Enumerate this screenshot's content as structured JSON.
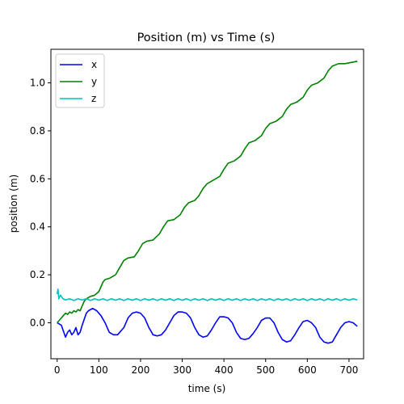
{
  "chart_data": {
    "type": "line",
    "title": "Position (m) vs Time (s)",
    "xlabel": "time (s)",
    "ylabel": "position (m)",
    "xlim": [
      -15,
      735
    ],
    "ylim": [
      -0.15,
      1.14
    ],
    "xticks": [
      0,
      100,
      200,
      300,
      400,
      500,
      600,
      700
    ],
    "yticks": [
      0.0,
      0.2,
      0.4,
      0.6,
      0.8,
      1.0
    ],
    "grid": false,
    "legend_position": "top-left",
    "series": [
      {
        "name": "x",
        "color": "#0000ff",
        "points": [
          [
            0,
            0.0
          ],
          [
            10,
            -0.01
          ],
          [
            20,
            -0.06
          ],
          [
            25,
            -0.04
          ],
          [
            30,
            -0.03
          ],
          [
            35,
            -0.05
          ],
          [
            40,
            -0.04
          ],
          [
            45,
            -0.02
          ],
          [
            50,
            -0.05
          ],
          [
            55,
            -0.04
          ],
          [
            60,
            -0.01
          ],
          [
            70,
            0.04
          ],
          [
            75,
            0.05
          ],
          [
            85,
            0.06
          ],
          [
            95,
            0.05
          ],
          [
            105,
            0.03
          ],
          [
            115,
            0.0
          ],
          [
            125,
            -0.04
          ],
          [
            135,
            -0.05
          ],
          [
            145,
            -0.05
          ],
          [
            160,
            -0.02
          ],
          [
            170,
            0.02
          ],
          [
            180,
            0.04
          ],
          [
            190,
            0.045
          ],
          [
            200,
            0.04
          ],
          [
            210,
            0.02
          ],
          [
            220,
            -0.02
          ],
          [
            230,
            -0.05
          ],
          [
            240,
            -0.055
          ],
          [
            250,
            -0.05
          ],
          [
            260,
            -0.03
          ],
          [
            270,
            0.0
          ],
          [
            280,
            0.03
          ],
          [
            290,
            0.045
          ],
          [
            300,
            0.045
          ],
          [
            310,
            0.04
          ],
          [
            320,
            0.02
          ],
          [
            330,
            -0.02
          ],
          [
            340,
            -0.05
          ],
          [
            350,
            -0.06
          ],
          [
            360,
            -0.055
          ],
          [
            370,
            -0.03
          ],
          [
            380,
            0.0
          ],
          [
            390,
            0.025
          ],
          [
            400,
            0.025
          ],
          [
            410,
            0.02
          ],
          [
            420,
            0.0
          ],
          [
            430,
            -0.04
          ],
          [
            440,
            -0.065
          ],
          [
            450,
            -0.07
          ],
          [
            460,
            -0.065
          ],
          [
            470,
            -0.045
          ],
          [
            480,
            -0.02
          ],
          [
            490,
            0.01
          ],
          [
            500,
            0.02
          ],
          [
            510,
            0.02
          ],
          [
            520,
            0.0
          ],
          [
            530,
            -0.04
          ],
          [
            540,
            -0.07
          ],
          [
            550,
            -0.08
          ],
          [
            560,
            -0.075
          ],
          [
            570,
            -0.05
          ],
          [
            580,
            -0.02
          ],
          [
            590,
            0.005
          ],
          [
            600,
            0.01
          ],
          [
            610,
            0.0
          ],
          [
            620,
            -0.02
          ],
          [
            630,
            -0.06
          ],
          [
            640,
            -0.08
          ],
          [
            650,
            -0.085
          ],
          [
            660,
            -0.08
          ],
          [
            670,
            -0.05
          ],
          [
            680,
            -0.02
          ],
          [
            690,
            0.0
          ],
          [
            700,
            0.005
          ],
          [
            710,
            0.0
          ],
          [
            720,
            -0.015
          ]
        ]
      },
      {
        "name": "y",
        "color": "#008000",
        "points": [
          [
            0,
            0.0
          ],
          [
            10,
            0.02
          ],
          [
            15,
            0.03
          ],
          [
            20,
            0.04
          ],
          [
            25,
            0.035
          ],
          [
            30,
            0.045
          ],
          [
            35,
            0.04
          ],
          [
            40,
            0.05
          ],
          [
            45,
            0.045
          ],
          [
            50,
            0.055
          ],
          [
            55,
            0.05
          ],
          [
            60,
            0.07
          ],
          [
            65,
            0.09
          ],
          [
            70,
            0.1
          ],
          [
            80,
            0.11
          ],
          [
            90,
            0.115
          ],
          [
            100,
            0.13
          ],
          [
            110,
            0.17
          ],
          [
            115,
            0.18
          ],
          [
            125,
            0.185
          ],
          [
            140,
            0.2
          ],
          [
            150,
            0.23
          ],
          [
            160,
            0.26
          ],
          [
            170,
            0.27
          ],
          [
            185,
            0.275
          ],
          [
            195,
            0.3
          ],
          [
            205,
            0.33
          ],
          [
            215,
            0.34
          ],
          [
            230,
            0.345
          ],
          [
            245,
            0.37
          ],
          [
            255,
            0.4
          ],
          [
            265,
            0.425
          ],
          [
            280,
            0.43
          ],
          [
            295,
            0.45
          ],
          [
            305,
            0.48
          ],
          [
            315,
            0.5
          ],
          [
            330,
            0.51
          ],
          [
            340,
            0.53
          ],
          [
            350,
            0.56
          ],
          [
            360,
            0.58
          ],
          [
            375,
            0.595
          ],
          [
            390,
            0.61
          ],
          [
            400,
            0.64
          ],
          [
            410,
            0.665
          ],
          [
            425,
            0.675
          ],
          [
            440,
            0.695
          ],
          [
            450,
            0.725
          ],
          [
            460,
            0.75
          ],
          [
            475,
            0.76
          ],
          [
            490,
            0.78
          ],
          [
            500,
            0.81
          ],
          [
            510,
            0.83
          ],
          [
            525,
            0.84
          ],
          [
            540,
            0.86
          ],
          [
            550,
            0.89
          ],
          [
            560,
            0.91
          ],
          [
            575,
            0.92
          ],
          [
            590,
            0.94
          ],
          [
            600,
            0.97
          ],
          [
            610,
            0.99
          ],
          [
            625,
            1.0
          ],
          [
            640,
            1.02
          ],
          [
            650,
            1.05
          ],
          [
            660,
            1.07
          ],
          [
            675,
            1.08
          ],
          [
            690,
            1.08
          ],
          [
            705,
            1.085
          ],
          [
            720,
            1.09
          ]
        ]
      },
      {
        "name": "z",
        "color": "#00bfbf",
        "points": [
          [
            0,
            0.12
          ],
          [
            2,
            0.14
          ],
          [
            4,
            0.1
          ],
          [
            8,
            0.115
          ],
          [
            14,
            0.1
          ],
          [
            20,
            0.095
          ],
          [
            30,
            0.1
          ],
          [
            40,
            0.093
          ],
          [
            50,
            0.1
          ],
          [
            60,
            0.095
          ],
          [
            70,
            0.1
          ],
          [
            80,
            0.093
          ],
          [
            90,
            0.1
          ],
          [
            100,
            0.094
          ],
          [
            110,
            0.1
          ],
          [
            120,
            0.093
          ],
          [
            130,
            0.1
          ],
          [
            140,
            0.094
          ],
          [
            150,
            0.1
          ],
          [
            160,
            0.093
          ],
          [
            170,
            0.1
          ],
          [
            180,
            0.094
          ],
          [
            190,
            0.1
          ],
          [
            200,
            0.093
          ],
          [
            210,
            0.1
          ],
          [
            220,
            0.094
          ],
          [
            230,
            0.1
          ],
          [
            240,
            0.093
          ],
          [
            250,
            0.1
          ],
          [
            260,
            0.094
          ],
          [
            270,
            0.1
          ],
          [
            280,
            0.093
          ],
          [
            290,
            0.1
          ],
          [
            300,
            0.094
          ],
          [
            310,
            0.1
          ],
          [
            320,
            0.093
          ],
          [
            330,
            0.1
          ],
          [
            340,
            0.094
          ],
          [
            350,
            0.1
          ],
          [
            360,
            0.093
          ],
          [
            370,
            0.1
          ],
          [
            380,
            0.094
          ],
          [
            390,
            0.1
          ],
          [
            400,
            0.093
          ],
          [
            410,
            0.1
          ],
          [
            420,
            0.094
          ],
          [
            430,
            0.1
          ],
          [
            440,
            0.093
          ],
          [
            450,
            0.1
          ],
          [
            460,
            0.094
          ],
          [
            470,
            0.1
          ],
          [
            480,
            0.093
          ],
          [
            490,
            0.1
          ],
          [
            500,
            0.094
          ],
          [
            510,
            0.1
          ],
          [
            520,
            0.093
          ],
          [
            530,
            0.1
          ],
          [
            540,
            0.094
          ],
          [
            550,
            0.1
          ],
          [
            560,
            0.093
          ],
          [
            570,
            0.1
          ],
          [
            580,
            0.094
          ],
          [
            590,
            0.1
          ],
          [
            600,
            0.093
          ],
          [
            610,
            0.1
          ],
          [
            620,
            0.094
          ],
          [
            630,
            0.1
          ],
          [
            640,
            0.093
          ],
          [
            650,
            0.1
          ],
          [
            660,
            0.094
          ],
          [
            670,
            0.1
          ],
          [
            680,
            0.093
          ],
          [
            690,
            0.1
          ],
          [
            700,
            0.094
          ],
          [
            710,
            0.1
          ],
          [
            720,
            0.095
          ]
        ]
      }
    ]
  }
}
